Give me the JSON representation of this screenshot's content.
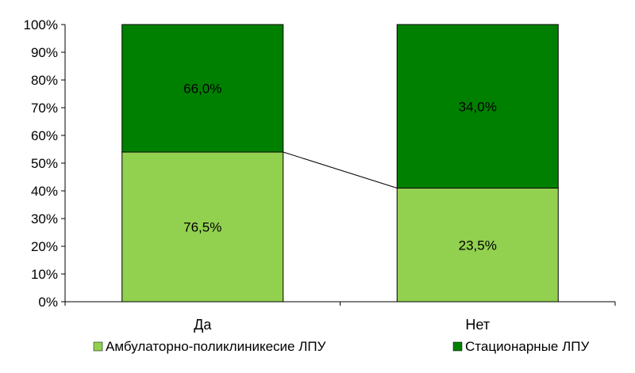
{
  "chart_data": {
    "type": "bar",
    "stacked": true,
    "normalized": true,
    "categories": [
      "Да",
      "Нет"
    ],
    "series": [
      {
        "name": "Амбулаторно-поликлиникесие ЛПУ",
        "color": "#92d050",
        "share_percent": [
          54,
          41
        ],
        "labels": [
          "76,5%",
          "23,5%"
        ]
      },
      {
        "name": "Стационарные ЛПУ",
        "color": "#008000",
        "share_percent": [
          46,
          59
        ],
        "labels": [
          "66,0%",
          "34,0%"
        ]
      }
    ],
    "series_lines": true,
    "y_ticks": [
      "0%",
      "10%",
      "20%",
      "30%",
      "40%",
      "50%",
      "60%",
      "70%",
      "80%",
      "90%",
      "100%"
    ],
    "ylim": [
      0,
      100
    ],
    "grid": false,
    "legend_position": "bottom"
  }
}
